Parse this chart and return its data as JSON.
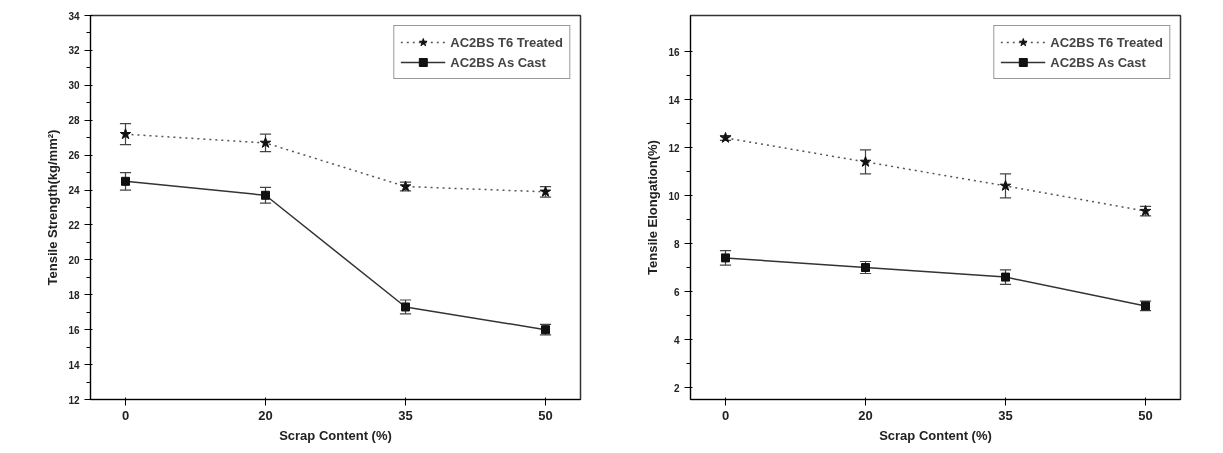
{
  "chart_data": [
    {
      "type": "line",
      "xlabel": "Scrap Content (%)",
      "ylabel": "Tensile Strength(kg/mm²)",
      "categories": [
        "0",
        "20",
        "35",
        "50"
      ],
      "ylim": [
        12,
        34
      ],
      "yticks": [
        12,
        14,
        16,
        18,
        20,
        22,
        24,
        26,
        28,
        30,
        32,
        34
      ],
      "legend": "top right",
      "grid": false,
      "series": [
        {
          "name": "AC2BS T6 Treated",
          "color": "#555555",
          "marker": "star",
          "line_style": "dotted",
          "values": [
            27.2,
            26.7,
            24.2,
            23.9
          ],
          "errors": [
            0.6,
            0.5,
            0.25,
            0.3
          ]
        },
        {
          "name": "AC2BS As Cast",
          "color": "#333333",
          "marker": "square",
          "line_style": "solid",
          "values": [
            24.5,
            23.7,
            17.3,
            16.0
          ],
          "errors": [
            0.5,
            0.45,
            0.4,
            0.3
          ]
        }
      ]
    },
    {
      "type": "line",
      "xlabel": "Scrap Content (%)",
      "ylabel": "Tensile Elongation(%)",
      "categories": [
        "0",
        "20",
        "35",
        "50"
      ],
      "ylim": [
        1.5,
        17.5
      ],
      "yticks": [
        2,
        4,
        6,
        8,
        10,
        12,
        14,
        16
      ],
      "legend": "top right",
      "grid": false,
      "series": [
        {
          "name": "AC2BS T6 Treated",
          "color": "#555555",
          "marker": "star",
          "line_style": "dotted",
          "values": [
            12.4,
            11.4,
            10.4,
            9.35
          ],
          "errors": [
            0.1,
            0.5,
            0.5,
            0.2
          ]
        },
        {
          "name": "AC2BS As Cast",
          "color": "#333333",
          "marker": "square",
          "line_style": "solid",
          "values": [
            7.4,
            7.0,
            6.6,
            5.4
          ],
          "errors": [
            0.3,
            0.25,
            0.3,
            0.2
          ]
        }
      ]
    }
  ]
}
